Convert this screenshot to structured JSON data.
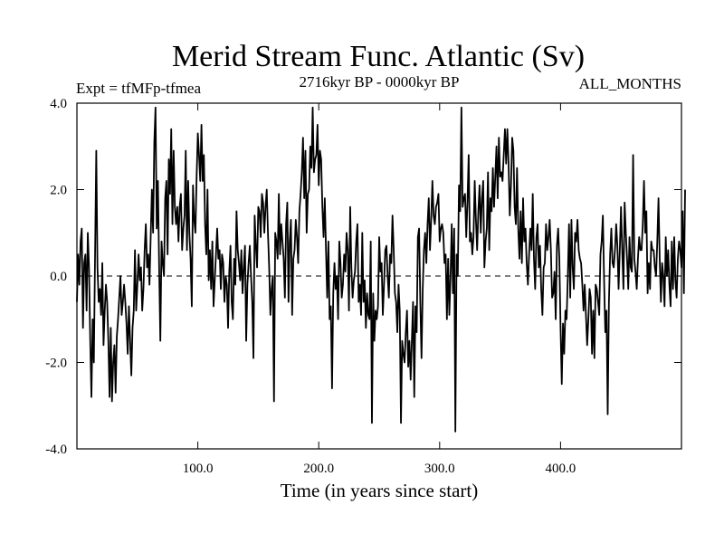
{
  "chart_data": {
    "type": "line",
    "title": "Merid Stream Func. Atlantic (Sv)",
    "subtitle_left": "Expt = tfMFp-tfmea",
    "subtitle_center": "2716kyr BP - 0000kyr BP",
    "subtitle_right": "ALL_MONTHS",
    "xlabel": "Time (in years since start)",
    "ylabel": "",
    "xlim": [
      0,
      500
    ],
    "ylim": [
      -4.0,
      4.0
    ],
    "x_ticks": [
      100,
      200,
      300,
      400
    ],
    "x_tick_labels": [
      "100.0",
      "200.0",
      "300.0",
      "400.0"
    ],
    "y_ticks": [
      -4,
      -2,
      0,
      2,
      4
    ],
    "y_tick_labels": [
      "-4.0",
      "-2.0",
      "0.0",
      "2.0",
      "4.0"
    ],
    "reference_line": 0.0,
    "grid": false,
    "series": [
      {
        "name": "Merid Stream Func. Atlantic",
        "x_start": 0,
        "x_step": 1,
        "values": [
          -0.6,
          0.5,
          -0.2,
          0.8,
          1.1,
          -1.2,
          0.3,
          0.5,
          -0.8,
          1.0,
          0.2,
          -1.5,
          -2.8,
          -1.0,
          -2.0,
          0.5,
          2.9,
          0.2,
          -0.6,
          -0.3,
          -0.9,
          0.3,
          -1.6,
          -0.8,
          -0.2,
          -0.6,
          -1.5,
          -2.8,
          -1.2,
          -2.9,
          -2.0,
          -1.6,
          -2.7,
          -1.4,
          -1.0,
          -0.5,
          0.0,
          -0.9,
          -0.6,
          -0.2,
          -0.6,
          -1.1,
          -1.8,
          -0.7,
          -1.5,
          -2.3,
          -1.2,
          -0.8,
          0.6,
          -0.8,
          -0.2,
          0.5,
          -0.1,
          0.2,
          -0.8,
          -0.3,
          0.6,
          1.2,
          0.2,
          0.5,
          -0.2,
          0.9,
          2.0,
          1.0,
          3.1,
          3.9,
          1.1,
          2.2,
          0.2,
          -1.5,
          0.8,
          0.3,
          0.0,
          1.8,
          2.2,
          0.5,
          2.7,
          1.9,
          3.4,
          1.2,
          2.9,
          1.6,
          1.2,
          1.6,
          0.8,
          1.6,
          1.9,
          0.6,
          1.1,
          1.4,
          2.9,
          0.6,
          2.2,
          1.0,
          0.4,
          -0.7,
          2.1,
          1.3,
          1.0,
          2.3,
          3.3,
          2.8,
          2.2,
          3.5,
          2.2,
          2.8,
          1.2,
          0.5,
          2.0,
          -0.1,
          0.6,
          -0.3,
          0.8,
          -0.7,
          -0.1,
          0.5,
          1.1,
          0.4,
          0.6,
          -0.3,
          0.5,
          0.3,
          -0.6,
          0.0,
          -0.2,
          -1.2,
          0.1,
          0.7,
          -0.6,
          -1.0,
          0.4,
          -0.2,
          1.5,
          0.6,
          0.3,
          -0.1,
          0.6,
          -0.4,
          0.2,
          0.7,
          -1.5,
          -0.2,
          0.3,
          0.7,
          0.0,
          -0.6,
          -1.9,
          1.4,
          0.7,
          0.2,
          1.6,
          1.5,
          0.9,
          1.9,
          1.7,
          1.0,
          1.6,
          2.0,
          1.0,
          0.2,
          -0.9,
          -0.3,
          0.0,
          -2.9,
          1.0,
          0.8,
          0.4,
          1.9,
          0.5,
          1.2,
          0.8,
          0.4,
          -0.5,
          1.2,
          1.7,
          -0.6,
          0.8,
          1.3,
          -0.9,
          0.4,
          0.6,
          1.3,
          0.9,
          0.3,
          1.5,
          1.9,
          2.4,
          3.2,
          1.8,
          2.9,
          1.0,
          1.9,
          2.0,
          3.0,
          2.5,
          3.9,
          2.4,
          2.7,
          2.8,
          3.5,
          2.1,
          2.9,
          2.7,
          1.6,
          0.9,
          1.8,
          0.6,
          -0.5,
          0.8,
          -1.0,
          -0.7,
          -2.6,
          -0.4,
          0.3,
          -0.3,
          0.0,
          -1.0,
          0.8,
          0.3,
          -0.5,
          -0.2,
          0.5,
          0.1,
          1.0,
          0.6,
          -0.8,
          1.6,
          0.2,
          -0.5,
          -0.1,
          0.1,
          0.8,
          1.2,
          -0.6,
          -0.2,
          -0.9,
          1.0,
          -0.6,
          -0.1,
          -1.2,
          -0.4,
          -0.9,
          -1.0,
          0.8,
          -3.4,
          -0.4,
          -1.5,
          -0.8,
          -1.0,
          -0.7,
          0.9,
          0.1,
          0.3,
          -0.9,
          -0.2,
          0.6,
          0.7,
          0.0,
          -0.5,
          0.5,
          0.3,
          1.4,
          0.6,
          -0.4,
          -0.6,
          -1.3,
          -0.2,
          -0.8,
          -3.4,
          -1.5,
          -1.8,
          -2.0,
          -1.3,
          -0.8,
          -2.1,
          -1.5,
          -2.4,
          -1.5,
          -0.6,
          -2.8,
          -0.7,
          -1.3,
          0.9,
          1.1,
          -0.6,
          -1.9,
          -0.3,
          0.6,
          1.0,
          0.3,
          1.2,
          1.8,
          0.6,
          1.3,
          2.2,
          1.4,
          1.2,
          1.6,
          1.7,
          1.9,
          0.8,
          1.1,
          1.2,
          1.0,
          0.3,
          0.5,
          -1.0,
          0.4,
          -0.9,
          0.0,
          1.2,
          -0.4,
          1.1,
          -3.6,
          0.5,
          0.0,
          2.1,
          1.5,
          3.9,
          1.6,
          1.8,
          1.9,
          0.9,
          1.7,
          2.8,
          0.8,
          1.0,
          0.5,
          0.9,
          2.2,
          1.3,
          0.6,
          1.5,
          2.1,
          1.0,
          1.8,
          2.2,
          0.2,
          0.8,
          1.1,
          2.4,
          0.6,
          1.8,
          1.5,
          2.5,
          1.6,
          2.3,
          3.0,
          1.8,
          3.2,
          2.3,
          2.4,
          2.2,
          2.8,
          3.4,
          2.6,
          3.4,
          2.6,
          1.4,
          2.1,
          3.2,
          2.9,
          1.6,
          1.2,
          2.5,
          1.1,
          0.4,
          1.5,
          0.3,
          1.8,
          0.8,
          1.1,
          0.3,
          -0.2,
          0.5,
          1.1,
          0.6,
          1.9,
          0.4,
          -0.3,
          0.9,
          1.2,
          0.2,
          0.7,
          -0.3,
          -0.9,
          0.2,
          0.3,
          1.2,
          0.6,
          0.9,
          1.3,
          0.6,
          -0.5,
          -0.4,
          0.1,
          -1.0,
          0.7,
          1.1,
          0.4,
          -1.2,
          -2.5,
          -1.1,
          -1.8,
          -0.8,
          -1.0,
          0.0,
          1.2,
          -0.5,
          1.3,
          0.2,
          -0.3,
          1.0,
          0.8,
          1.3,
          0.6,
          0.4,
          0.3,
          -0.2,
          -0.8,
          -0.2,
          -0.9,
          -1.6,
          -1.0,
          -0.3,
          -0.5,
          -1.8,
          -0.8,
          -1.9,
          -0.2,
          -0.3,
          -0.6,
          -0.9,
          0.5,
          0.8,
          1.4,
          -0.1,
          -1.3,
          -0.8,
          -3.2,
          -0.6,
          0.5,
          1.1,
          0.3,
          0.2,
          0.6,
          1.2,
          0.7,
          -0.3,
          0.6,
          1.6,
          0.6,
          -0.3,
          1.7,
          1.0,
          0.4,
          -0.3,
          0.9,
          0.2,
          0.1,
          2.8,
          0.4,
          0.1,
          -0.3,
          0.4,
          0.9,
          0.6,
          0.6,
          1.2,
          2.2,
          1.0,
          1.5,
          -0.4,
          0.3,
          -0.3,
          0.8,
          0.6,
          0.6,
          0.2,
          0.0,
          0.8,
          1.8,
          0.4,
          -0.6,
          0.3,
          0.0,
          -0.7,
          0.9,
          0.0,
          0.6,
          -0.2,
          -0.7,
          0.8,
          -0.3,
          0.9,
          -0.1,
          -0.5,
          0.4,
          0.8,
          0.6,
          0.2,
          1.5,
          -0.4,
          2.0
        ]
      }
    ]
  }
}
